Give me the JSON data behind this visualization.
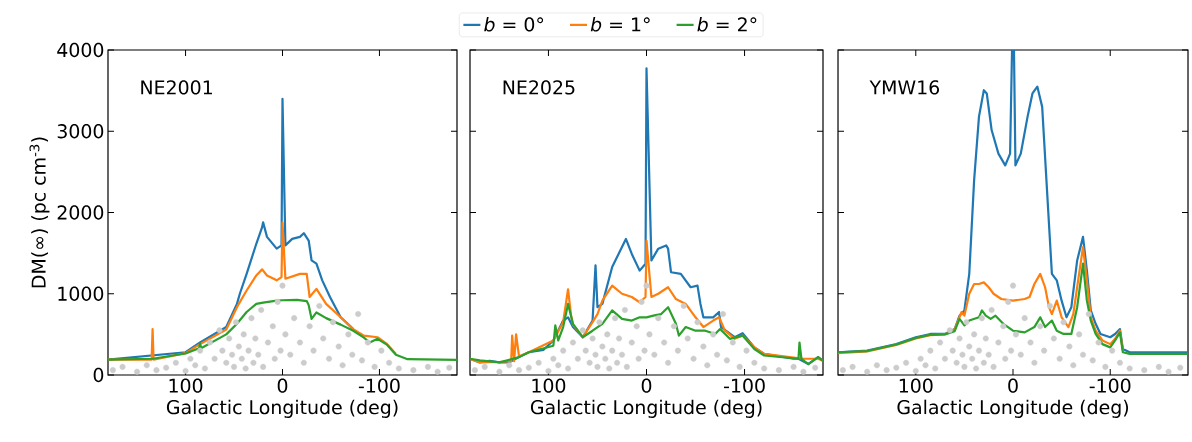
{
  "chart_data": [
    {
      "type": "line",
      "annotations": [
        "NE2001"
      ],
      "xlabel": "Galactic Longitude (deg)",
      "ylabel": "DM(∞) (pc cm$^{-3}$)",
      "xlim": [
        180,
        -180
      ],
      "xticks": [
        100,
        0,
        -100
      ],
      "ylim": [
        0,
        4000
      ],
      "yticks": [
        0,
        1000,
        2000,
        3000,
        4000
      ],
      "series": [
        {
          "type": "scatter",
          "color": "#cccccc",
          "x": [
            175,
            165,
            150,
            140,
            130,
            120,
            110,
            100,
            95,
            90,
            85,
            80,
            75,
            70,
            65,
            62,
            58,
            55,
            52,
            50,
            48,
            45,
            42,
            40,
            38,
            35,
            32,
            30,
            28,
            25,
            22,
            20,
            15,
            10,
            8,
            5,
            2,
            0,
            -3,
            -8,
            -12,
            -18,
            -22,
            -28,
            -32,
            -38,
            -42,
            -48,
            -52,
            -58,
            -62,
            -68,
            -72,
            -78,
            -82,
            -88,
            -95,
            -102,
            -110,
            -120,
            -135,
            -150,
            -160,
            -172
          ],
          "values": [
            60,
            100,
            40,
            120,
            60,
            90,
            150,
            50,
            200,
            120,
            300,
            80,
            400,
            200,
            550,
            300,
            150,
            450,
            250,
            100,
            650,
            350,
            200,
            500,
            80,
            300,
            700,
            150,
            450,
            250,
            800,
            100,
            400,
            600,
            200,
            900,
            300,
            1100,
            500,
            250,
            700,
            400,
            150,
            600,
            300,
            850,
            450,
            200,
            650,
            350,
            120,
            500,
            250,
            750,
            180,
            400,
            100,
            300,
            150,
            80,
            60,
            100,
            40,
            90
          ]
        },
        {
          "color": "#1f77b4",
          "x": [
            180,
            100,
            85,
            58,
            47,
            44,
            37,
            27,
            21,
            20,
            16,
            6,
            1,
            0,
            -3,
            -10,
            -18,
            -22,
            -27,
            -30,
            -35,
            -41,
            -49,
            -60,
            -73
          ],
          "values": [
            190,
            280,
            400,
            590,
            875,
            1000,
            1245,
            1615,
            1820,
            1880,
            1700,
            1555,
            1595,
            3400,
            1595,
            1675,
            1700,
            1745,
            1655,
            1410,
            1370,
            1165,
            960,
            710,
            565
          ]
        },
        {
          "color": "#ff7f0e",
          "x": [
            180,
            135,
            134,
            133,
            100,
            85,
            58,
            47,
            37,
            27,
            21,
            16,
            6,
            1,
            0,
            -3,
            -18,
            -25,
            -28,
            -35,
            -45,
            -60,
            -73,
            -84,
            -98,
            -108,
            -117
          ],
          "values": [
            190,
            190,
            565,
            190,
            270,
            380,
            560,
            835,
            1040,
            1225,
            1300,
            1225,
            1165,
            1205,
            1880,
            1185,
            1245,
            1245,
            960,
            1060,
            875,
            710,
            565,
            485,
            465,
            380,
            260
          ]
        },
        {
          "color": "#2ca02c",
          "x": [
            180,
            134,
            100,
            86,
            85,
            84,
            58,
            47,
            37,
            27,
            20,
            6,
            0,
            -15,
            -25,
            -27,
            -30,
            -35,
            -45,
            -60,
            -73,
            -84,
            -90,
            -98,
            -108,
            -117,
            -129,
            -180
          ],
          "values": [
            190,
            200,
            265,
            330,
            390,
            330,
            500,
            630,
            775,
            875,
            890,
            915,
            920,
            925,
            910,
            860,
            690,
            770,
            700,
            620,
            545,
            460,
            400,
            445,
            370,
            250,
            195,
            185
          ]
        }
      ]
    },
    {
      "type": "line",
      "annotations": [
        "NE2025"
      ],
      "xlabel": "Galactic Longitude (deg)",
      "xlim": [
        180,
        -180
      ],
      "xticks": [
        100,
        0,
        -100
      ],
      "ylim": [
        0,
        4000
      ],
      "yticks": [
        0,
        1000,
        2000,
        3000,
        4000
      ],
      "tick_labels": "x",
      "legend": "top",
      "series": [
        {
          "type": "scatter",
          "color": "#cccccc",
          "x": [
            175,
            165,
            150,
            140,
            130,
            120,
            110,
            100,
            95,
            90,
            85,
            80,
            75,
            70,
            65,
            62,
            58,
            55,
            52,
            50,
            48,
            45,
            42,
            40,
            38,
            35,
            32,
            30,
            28,
            25,
            22,
            20,
            15,
            10,
            8,
            5,
            2,
            0,
            -3,
            -8,
            -12,
            -18,
            -22,
            -28,
            -32,
            -38,
            -42,
            -48,
            -52,
            -58,
            -62,
            -68,
            -72,
            -78,
            -82,
            -88,
            -95,
            -102,
            -110,
            -120,
            -135,
            -150,
            -160,
            -172
          ],
          "values": [
            60,
            100,
            40,
            120,
            60,
            90,
            150,
            50,
            200,
            120,
            300,
            80,
            400,
            200,
            550,
            300,
            150,
            450,
            250,
            100,
            650,
            350,
            200,
            500,
            80,
            300,
            700,
            150,
            450,
            250,
            800,
            100,
            400,
            600,
            200,
            900,
            300,
            1100,
            500,
            250,
            700,
            400,
            150,
            600,
            300,
            850,
            450,
            200,
            650,
            350,
            120,
            500,
            250,
            750,
            180,
            400,
            100,
            300,
            150,
            80,
            60,
            100,
            40,
            90
          ]
        },
        {
          "name": "*b* = 0°",
          "color": "#1f77b4",
          "x": [
            180,
            170,
            160,
            150,
            140,
            130,
            120,
            105,
            95,
            85,
            80,
            75,
            65,
            55,
            52,
            50,
            45,
            35,
            25,
            21,
            15,
            7,
            1,
            0,
            -5,
            -12,
            -20,
            -22,
            -25,
            -35,
            -45,
            -52,
            -55,
            -58,
            -68,
            -74,
            -76,
            -90,
            -98,
            -110,
            -120,
            -150,
            -155,
            -165,
            -175,
            -180
          ],
          "values": [
            200,
            155,
            175,
            155,
            155,
            220,
            280,
            310,
            425,
            670,
            710,
            590,
            465,
            670,
            1350,
            835,
            875,
            1330,
            1575,
            1675,
            1490,
            1285,
            1370,
            3775,
            1410,
            1555,
            1595,
            1555,
            1265,
            1245,
            1080,
            1100,
            875,
            710,
            710,
            775,
            590,
            465,
            515,
            340,
            260,
            200,
            200,
            135,
            220,
            175
          ]
        },
        {
          "name": "*b* = 1°",
          "color": "#ff7f0e",
          "x": [
            180,
            170,
            150,
            138,
            137,
            135,
            133,
            130,
            120,
            95,
            85,
            80,
            77,
            75,
            65,
            55,
            50,
            45,
            35,
            25,
            15,
            7,
            1,
            0,
            -5,
            -12,
            -22,
            -30,
            -40,
            -50,
            -58,
            -68,
            -74,
            -80,
            -90,
            -98,
            -110,
            -120,
            -160,
            -175,
            -180
          ],
          "values": [
            200,
            155,
            160,
            170,
            485,
            170,
            500,
            230,
            280,
            425,
            650,
            1055,
            740,
            620,
            465,
            650,
            750,
            915,
            1100,
            1000,
            960,
            895,
            960,
            1655,
            960,
            1000,
            1080,
            935,
            875,
            710,
            590,
            670,
            710,
            545,
            445,
            485,
            340,
            260,
            200,
            200,
            175
          ]
        },
        {
          "name": "*b* = 2°",
          "color": "#2ca02c",
          "x": [
            180,
            170,
            150,
            130,
            120,
            95,
            93,
            90,
            85,
            80,
            75,
            65,
            55,
            45,
            35,
            25,
            15,
            7,
            0,
            -7,
            -15,
            -22,
            -30,
            -33,
            -40,
            -50,
            -60,
            -70,
            -75,
            -85,
            -98,
            -110,
            -120,
            -155,
            -156,
            -158,
            -165,
            -175,
            -180
          ],
          "values": [
            200,
            180,
            155,
            220,
            280,
            360,
            610,
            425,
            590,
            875,
            630,
            465,
            545,
            630,
            795,
            690,
            670,
            710,
            710,
            730,
            750,
            835,
            630,
            485,
            590,
            545,
            545,
            505,
            565,
            445,
            485,
            320,
            240,
            200,
            400,
            200,
            135,
            220,
            175
          ]
        }
      ]
    },
    {
      "type": "line",
      "annotations": [
        "YMW16"
      ],
      "xlabel": "Galactic Longitude (deg)",
      "xlim": [
        180,
        -180
      ],
      "xticks": [
        100,
        0,
        -100
      ],
      "ylim": [
        0,
        4000
      ],
      "yticks": [
        0,
        1000,
        2000,
        3000,
        4000
      ],
      "tick_labels": "x",
      "series": [
        {
          "type": "scatter",
          "color": "#cccccc",
          "x": [
            175,
            165,
            150,
            140,
            130,
            120,
            110,
            100,
            95,
            90,
            85,
            80,
            75,
            70,
            65,
            62,
            58,
            55,
            52,
            50,
            48,
            45,
            42,
            40,
            38,
            35,
            32,
            30,
            28,
            25,
            22,
            20,
            15,
            10,
            8,
            5,
            2,
            0,
            -3,
            -8,
            -12,
            -18,
            -22,
            -28,
            -32,
            -38,
            -42,
            -48,
            -52,
            -58,
            -62,
            -68,
            -72,
            -78,
            -82,
            -88,
            -95,
            -102,
            -110,
            -120,
            -135,
            -150,
            -160,
            -172
          ],
          "values": [
            60,
            100,
            40,
            120,
            60,
            90,
            150,
            50,
            200,
            120,
            300,
            80,
            400,
            200,
            550,
            300,
            150,
            450,
            250,
            100,
            650,
            350,
            200,
            500,
            80,
            300,
            700,
            150,
            450,
            250,
            800,
            100,
            400,
            600,
            200,
            900,
            300,
            1100,
            500,
            250,
            700,
            400,
            150,
            600,
            300,
            850,
            450,
            200,
            650,
            350,
            120,
            500,
            250,
            750,
            180,
            400,
            100,
            300,
            150,
            80,
            60,
            100,
            40,
            90
          ]
        },
        {
          "color": "#1f77b4",
          "x": [
            180,
            150,
            120,
            100,
            85,
            70,
            60,
            55,
            50,
            45,
            40,
            35,
            30,
            27,
            22,
            15,
            8,
            3,
            1,
            -1,
            -2.5,
            -8,
            -15,
            -20,
            -25,
            -30,
            -35,
            -40,
            -45,
            -50,
            -55,
            -60,
            -66,
            -72,
            -76,
            -80,
            -85,
            -90,
            -100,
            -105,
            -110,
            -113,
            -120,
            -180
          ],
          "values": [
            280,
            300,
            380,
            465,
            505,
            505,
            565,
            730,
            795,
            1245,
            2395,
            3180,
            3505,
            3465,
            3015,
            2725,
            2580,
            2725,
            4000,
            4000,
            2580,
            2725,
            3180,
            3465,
            3550,
            3300,
            2270,
            1245,
            1165,
            915,
            710,
            835,
            1410,
            1700,
            1285,
            795,
            630,
            505,
            465,
            505,
            565,
            320,
            280,
            280
          ]
        },
        {
          "color": "#ff7f0e",
          "x": [
            180,
            150,
            120,
            100,
            85,
            70,
            60,
            53,
            50,
            45,
            40,
            35,
            30,
            25,
            20,
            12,
            0,
            -12,
            -17,
            -22,
            -28,
            -33,
            -37,
            -40,
            -45,
            -50,
            -57,
            -62,
            -67,
            -72,
            -76,
            -80,
            -85,
            -92,
            -100,
            -105,
            -110,
            -113
          ],
          "values": [
            270,
            290,
            370,
            450,
            490,
            500,
            560,
            775,
            730,
            1000,
            1120,
            1120,
            1140,
            1080,
            1000,
            935,
            915,
            935,
            960,
            1120,
            1245,
            1080,
            835,
            750,
            915,
            710,
            590,
            750,
            1165,
            1575,
            1165,
            710,
            545,
            425,
            380,
            445,
            545,
            300
          ]
        },
        {
          "color": "#2ca02c",
          "x": [
            180,
            150,
            120,
            100,
            85,
            70,
            60,
            55,
            50,
            45,
            35,
            32,
            28,
            23,
            18,
            10,
            0,
            -12,
            -22,
            -28,
            -33,
            -40,
            -45,
            -52,
            -60,
            -66,
            -72,
            -76,
            -80,
            -85,
            -92,
            -100,
            -105,
            -110,
            -113,
            -120,
            -180
          ],
          "values": [
            280,
            295,
            375,
            455,
            495,
            500,
            540,
            690,
            610,
            670,
            710,
            795,
            730,
            690,
            730,
            630,
            545,
            525,
            590,
            710,
            590,
            670,
            545,
            505,
            505,
            835,
            1370,
            915,
            670,
            505,
            380,
            340,
            425,
            525,
            280,
            260,
            260
          ]
        }
      ]
    }
  ]
}
